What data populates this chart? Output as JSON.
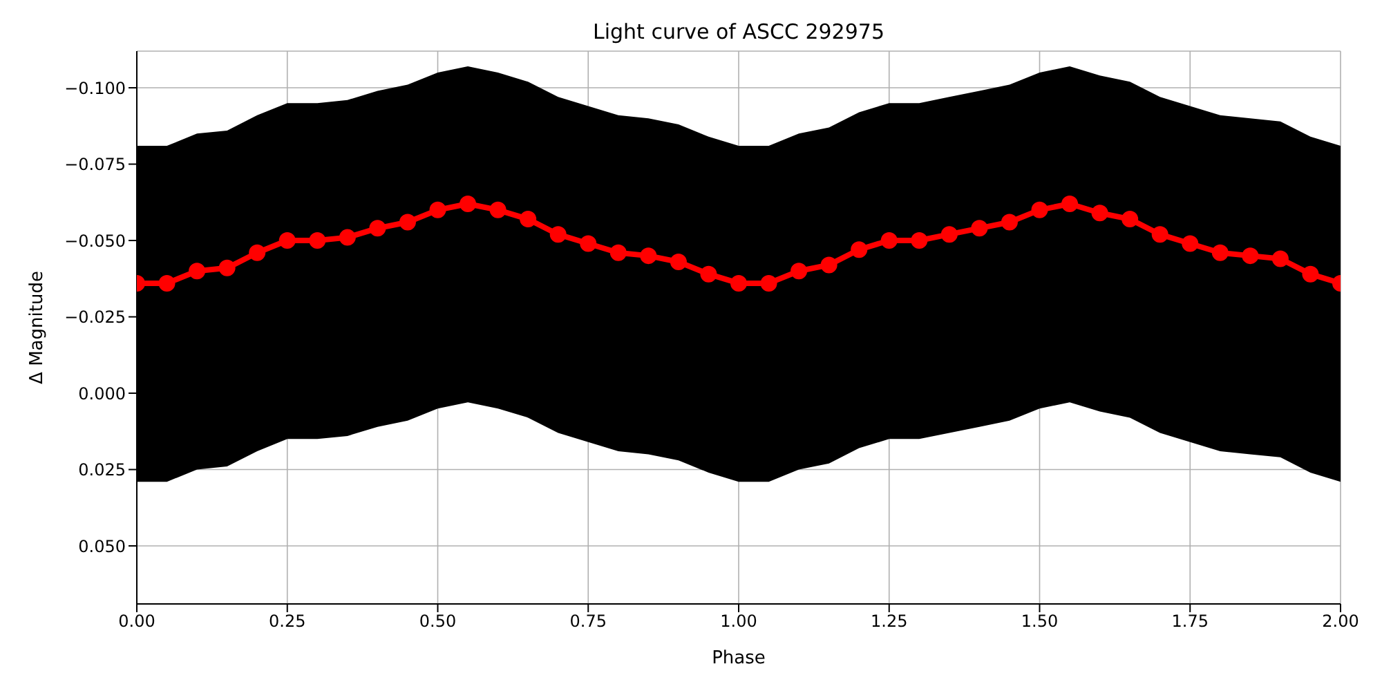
{
  "chart_data": {
    "type": "line",
    "title": "Light curve of ASCC 292975",
    "xlabel": "Phase",
    "ylabel": "Δ Magnitude",
    "x": [
      0,
      0.05,
      0.1,
      0.15,
      0.2,
      0.25,
      0.3,
      0.35,
      0.4,
      0.45,
      0.5,
      0.55,
      0.6,
      0.65,
      0.7,
      0.75,
      0.8,
      0.85,
      0.9,
      0.95,
      1,
      1.05,
      1.1,
      1.15,
      1.2,
      1.25,
      1.3,
      1.35,
      1.4,
      1.45,
      1.5,
      1.55,
      1.6,
      1.65,
      1.7,
      1.75,
      1.8,
      1.85,
      1.9,
      1.95,
      2
    ],
    "xlim": [
      0,
      2
    ],
    "xticks": [
      {
        "value": 0,
        "label": "0.00"
      },
      {
        "value": 0.25,
        "label": "0.25"
      },
      {
        "value": 0.5,
        "label": "0.50"
      },
      {
        "value": 0.75,
        "label": "0.75"
      },
      {
        "value": 1,
        "label": "1.00"
      },
      {
        "value": 1.25,
        "label": "1.25"
      },
      {
        "value": 1.5,
        "label": "1.50"
      },
      {
        "value": 1.75,
        "label": "1.75"
      },
      {
        "value": 2,
        "label": "2.00"
      }
    ],
    "ylim": [
      0.069,
      -0.112
    ],
    "yticks": [
      {
        "value": -0.1,
        "label": "−0.100"
      },
      {
        "value": -0.075,
        "label": "−0.075"
      },
      {
        "value": -0.05,
        "label": "−0.050"
      },
      {
        "value": -0.025,
        "label": "−0.025"
      },
      {
        "value": 0,
        "label": "0.000"
      },
      {
        "value": 0.025,
        "label": "0.025"
      },
      {
        "value": 0.05,
        "label": "0.050"
      }
    ],
    "grid": true,
    "marker": "circle",
    "line_style": "solid",
    "series": [
      {
        "color": "#ff0000",
        "upper": [
          -0.081,
          -0.081,
          -0.085,
          -0.086,
          -0.091,
          -0.095,
          -0.095,
          -0.096,
          -0.099,
          -0.101,
          -0.105,
          -0.107,
          -0.105,
          -0.102,
          -0.097,
          -0.094,
          -0.091,
          -0.09,
          -0.088,
          -0.084,
          -0.081,
          -0.081,
          -0.085,
          -0.087,
          -0.092,
          -0.095,
          -0.095,
          -0.097,
          -0.099,
          -0.101,
          -0.105,
          -0.107,
          -0.104,
          -0.102,
          -0.097,
          -0.094,
          -0.091,
          -0.09,
          -0.089,
          -0.084,
          -0.081
        ],
        "lower": [
          0.029,
          0.029,
          0.025,
          0.024,
          0.019,
          0.015,
          0.015,
          0.014,
          0.011,
          0.009,
          0.005,
          0.003,
          0.005,
          0.008,
          0.013,
          0.016,
          0.019,
          0.02,
          0.022,
          0.026,
          0.029,
          0.029,
          0.025,
          0.023,
          0.018,
          0.015,
          0.015,
          0.013,
          0.011,
          0.009,
          0.005,
          0.003,
          0.006,
          0.008,
          0.013,
          0.016,
          0.019,
          0.02,
          0.021,
          0.026,
          0.029
        ],
        "values": [
          -0.036,
          -0.036,
          -0.04,
          -0.041,
          -0.046,
          -0.05,
          -0.05,
          -0.051,
          -0.054,
          -0.056,
          -0.06,
          -0.062,
          -0.06,
          -0.057,
          -0.052,
          -0.049,
          -0.046,
          -0.045,
          -0.043,
          -0.039,
          -0.036,
          -0.036,
          -0.04,
          -0.042,
          -0.047,
          -0.05,
          -0.05,
          -0.052,
          -0.054,
          -0.056,
          -0.06,
          -0.062,
          -0.059,
          -0.057,
          -0.052,
          -0.049,
          -0.046,
          -0.045,
          -0.044,
          -0.039,
          -0.036
        ]
      }
    ]
  }
}
